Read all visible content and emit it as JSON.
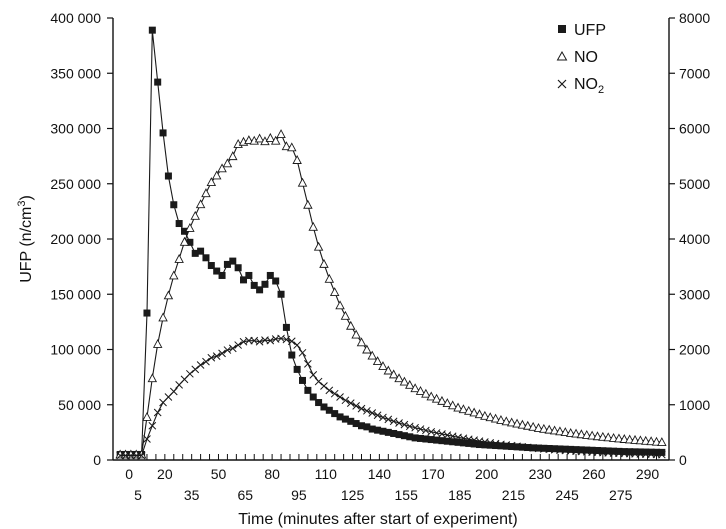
{
  "chart_data": {
    "type": "line",
    "xlabel": "Time (minutes after start of experiment)",
    "ylabel_left": "UFP (n/cm",
    "ylabel_left_sup": "3",
    "ylabel_left_tail": ")",
    "xlim": [
      -9,
      302
    ],
    "ylim_left": [
      0,
      400000
    ],
    "ylim_right": [
      0,
      8000
    ],
    "x_ticks_top_row": [
      "0",
      "20",
      "50",
      "80",
      "110",
      "140",
      "170",
      "200",
      "230",
      "260",
      "290"
    ],
    "x_ticks_top_values": [
      0,
      20,
      50,
      80,
      110,
      140,
      170,
      200,
      230,
      260,
      290
    ],
    "x_ticks_bottom_row": [
      "5",
      "35",
      "65",
      "95",
      "125",
      "155",
      "185",
      "215",
      "245",
      "275"
    ],
    "x_ticks_bottom_values": [
      5,
      35,
      65,
      95,
      125,
      155,
      185,
      215,
      245,
      275
    ],
    "y_left_ticks": [
      "0",
      "50 000",
      "100 000",
      "150 000",
      "200 000",
      "250 000",
      "300 000",
      "350 000",
      "400 000"
    ],
    "y_left_values": [
      0,
      50000,
      100000,
      150000,
      200000,
      250000,
      300000,
      350000,
      400000
    ],
    "y_right_ticks": [
      "0",
      "1000",
      "2000",
      "3000",
      "4000",
      "5000",
      "6000",
      "7000",
      "8000"
    ],
    "y_right_values": [
      0,
      1000,
      2000,
      3000,
      4000,
      5000,
      6000,
      7000,
      8000
    ],
    "legend": {
      "placement": "top-right",
      "entries": [
        {
          "label": "UFP",
          "marker": "square"
        },
        {
          "label": "NO",
          "marker": "triangle"
        },
        {
          "label": "NO",
          "sub": "2",
          "marker": "cross"
        }
      ]
    },
    "series": [
      {
        "name": "UFP",
        "axis": "left",
        "marker": "square",
        "x": [
          -5,
          -2,
          1,
          4,
          7,
          10,
          13,
          16,
          19,
          22,
          25,
          28,
          31,
          34,
          37,
          40,
          43,
          46,
          49,
          52,
          55,
          58,
          61,
          64,
          67,
          70,
          73,
          76,
          79,
          82,
          85,
          88,
          91,
          94,
          97,
          100,
          103,
          106,
          109,
          112,
          115,
          118,
          121,
          124,
          127,
          130,
          133,
          136,
          139,
          142,
          145,
          148,
          151,
          154,
          157,
          160,
          163,
          166,
          169,
          172,
          175,
          178,
          181,
          184,
          187,
          190,
          193,
          196,
          199,
          202,
          205,
          208,
          211,
          214,
          217,
          220,
          223,
          226,
          229,
          232,
          235,
          238,
          241,
          244,
          247,
          250,
          253,
          256,
          259,
          262,
          265,
          268,
          271,
          274,
          277,
          280,
          283,
          286,
          289,
          292,
          295,
          298
        ],
        "y": [
          5000,
          5000,
          5000,
          5000,
          5000,
          133000,
          389000,
          342000,
          296000,
          257000,
          231000,
          214000,
          207000,
          197000,
          187000,
          189000,
          183000,
          176000,
          171000,
          167000,
          177000,
          180000,
          174000,
          163000,
          167000,
          158000,
          154000,
          159000,
          167000,
          162000,
          150000,
          120000,
          95000,
          82000,
          72000,
          63000,
          57000,
          52000,
          48000,
          45000,
          42000,
          39000,
          37000,
          35000,
          33000,
          31000,
          30000,
          28000,
          27000,
          26000,
          25000,
          24000,
          23000,
          22000,
          21000,
          20000,
          19500,
          19000,
          18500,
          18000,
          17500,
          17000,
          16500,
          16000,
          15500,
          15000,
          14500,
          14000,
          13700,
          13400,
          13100,
          12800,
          12500,
          12200,
          11900,
          11600,
          11300,
          11000,
          10800,
          10600,
          10400,
          10200,
          10000,
          9800,
          9600,
          9400,
          9200,
          9000,
          8800,
          8600,
          8400,
          8200,
          8000,
          7800,
          7600,
          7500,
          7400,
          7300,
          7200,
          7100,
          7000,
          6900
        ]
      },
      {
        "name": "NO",
        "axis": "right",
        "marker": "triangle",
        "x": [
          -5,
          -2,
          1,
          4,
          7,
          10,
          13,
          16,
          19,
          22,
          25,
          28,
          31,
          34,
          37,
          40,
          43,
          46,
          49,
          52,
          55,
          58,
          61,
          64,
          67,
          70,
          73,
          76,
          79,
          82,
          85,
          88,
          91,
          94,
          97,
          100,
          103,
          106,
          109,
          112,
          115,
          118,
          121,
          124,
          127,
          130,
          133,
          136,
          139,
          142,
          145,
          148,
          151,
          154,
          157,
          160,
          163,
          166,
          169,
          172,
          175,
          178,
          181,
          184,
          187,
          190,
          193,
          196,
          199,
          202,
          205,
          208,
          211,
          214,
          217,
          220,
          223,
          226,
          229,
          232,
          235,
          238,
          241,
          244,
          247,
          250,
          253,
          256,
          259,
          262,
          265,
          268,
          271,
          274,
          277,
          280,
          283,
          286,
          289,
          292,
          295,
          298
        ],
        "y": [
          100,
          100,
          100,
          100,
          100,
          780,
          1480,
          2100,
          2580,
          2980,
          3340,
          3640,
          3950,
          4200,
          4420,
          4630,
          4830,
          5030,
          5150,
          5280,
          5370,
          5500,
          5720,
          5760,
          5790,
          5780,
          5820,
          5770,
          5830,
          5780,
          5900,
          5680,
          5660,
          5430,
          5020,
          4620,
          4220,
          3860,
          3550,
          3280,
          3040,
          2800,
          2610,
          2430,
          2270,
          2130,
          2000,
          1890,
          1790,
          1700,
          1620,
          1550,
          1480,
          1420,
          1360,
          1300,
          1250,
          1200,
          1150,
          1110,
          1070,
          1030,
          990,
          950,
          920,
          890,
          860,
          830,
          800,
          775,
          750,
          725,
          700,
          680,
          660,
          640,
          620,
          600,
          580,
          565,
          550,
          535,
          520,
          505,
          490,
          478,
          466,
          454,
          442,
          430,
          420,
          410,
          400,
          390,
          380,
          372,
          364,
          356,
          348,
          340,
          332,
          324
        ]
      },
      {
        "name": "NO2",
        "axis": "right",
        "marker": "cross",
        "x": [
          -5,
          -2,
          1,
          4,
          7,
          10,
          13,
          16,
          19,
          22,
          25,
          28,
          31,
          34,
          37,
          40,
          43,
          46,
          49,
          52,
          55,
          58,
          61,
          64,
          67,
          70,
          73,
          76,
          79,
          82,
          85,
          88,
          91,
          94,
          97,
          100,
          103,
          106,
          109,
          112,
          115,
          118,
          121,
          124,
          127,
          130,
          133,
          136,
          139,
          142,
          145,
          148,
          151,
          154,
          157,
          160,
          163,
          166,
          169,
          172,
          175,
          178,
          181,
          184,
          187,
          190,
          193,
          196,
          199,
          202,
          205,
          208,
          211,
          214,
          217,
          220,
          223,
          226,
          229,
          232,
          235,
          238,
          241,
          244,
          247,
          250,
          253,
          256,
          259,
          262,
          265,
          268,
          271,
          274,
          277,
          280,
          283,
          286,
          289,
          292,
          295,
          298
        ],
        "y": [
          80,
          80,
          80,
          80,
          80,
          380,
          620,
          860,
          1040,
          1140,
          1240,
          1360,
          1460,
          1560,
          1640,
          1720,
          1780,
          1850,
          1880,
          1930,
          1990,
          2020,
          2080,
          2140,
          2160,
          2160,
          2140,
          2170,
          2160,
          2190,
          2200,
          2180,
          2150,
          2080,
          1940,
          1740,
          1540,
          1420,
          1340,
          1260,
          1200,
          1140,
          1080,
          1030,
          980,
          930,
          890,
          850,
          810,
          770,
          735,
          700,
          670,
          640,
          610,
          585,
          560,
          535,
          510,
          490,
          470,
          450,
          430,
          410,
          393,
          376,
          359,
          342,
          326,
          311,
          297,
          284,
          272,
          260,
          249,
          239,
          229,
          219,
          210,
          202,
          194,
          186,
          178,
          171,
          165,
          159,
          153,
          148,
          143,
          138,
          133,
          129,
          125,
          121,
          118,
          115,
          112,
          109,
          106,
          103,
          100,
          98
        ]
      }
    ]
  }
}
